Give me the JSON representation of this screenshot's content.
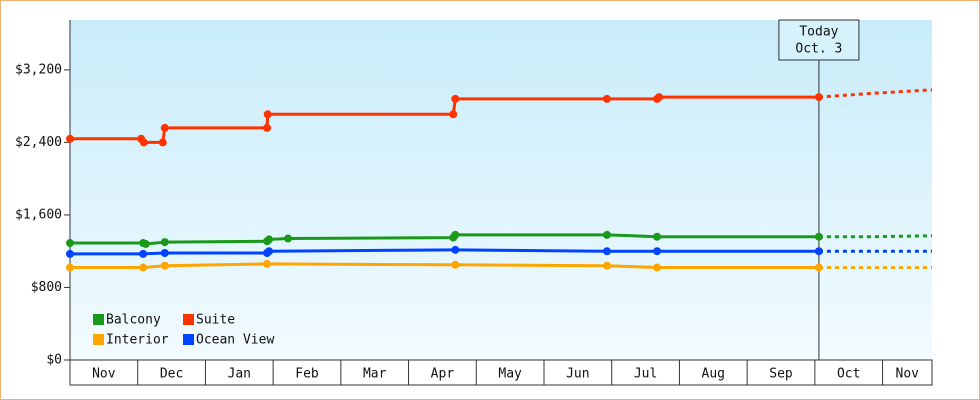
{
  "chart_data": {
    "type": "line",
    "step": true,
    "xlim": [
      0,
      12.73
    ],
    "ylim": [
      0,
      3750
    ],
    "yticks": [
      {
        "value": 0,
        "label": "$0"
      },
      {
        "value": 800,
        "label": "$800"
      },
      {
        "value": 1600,
        "label": "$1,600"
      },
      {
        "value": 2400,
        "label": "$2,400"
      },
      {
        "value": 3200,
        "label": "$3,200"
      }
    ],
    "xticks": [
      {
        "value": 0.5,
        "label": "Nov"
      },
      {
        "value": 1.5,
        "label": "Dec"
      },
      {
        "value": 2.5,
        "label": "Jan"
      },
      {
        "value": 3.5,
        "label": "Feb"
      },
      {
        "value": 4.5,
        "label": "Mar"
      },
      {
        "value": 5.5,
        "label": "Apr"
      },
      {
        "value": 6.5,
        "label": "May"
      },
      {
        "value": 7.5,
        "label": "Jun"
      },
      {
        "value": 8.5,
        "label": "Jul"
      },
      {
        "value": 9.5,
        "label": "Aug"
      },
      {
        "value": 10.5,
        "label": "Sep"
      },
      {
        "value": 11.5,
        "label": "Oct"
      },
      {
        "value": 12.5,
        "label": "Nov"
      }
    ],
    "today": {
      "x": 11.06,
      "label": [
        "Today",
        "Oct. 3"
      ]
    },
    "forecast_x": [
      11.06,
      11.82,
      12.73
    ],
    "series": [
      {
        "name": "Balcony",
        "color": "#1a9a1a",
        "x": [
          0,
          1.08,
          1.12,
          1.4,
          2.91,
          2.94,
          3.22,
          5.66,
          5.69,
          7.93,
          8.67,
          11.06
        ],
        "values": [
          1290,
          1290,
          1280,
          1300,
          1310,
          1330,
          1340,
          1350,
          1380,
          1380,
          1360,
          1360
        ],
        "forecast_values": [
          1360,
          1360,
          1370
        ]
      },
      {
        "name": "Suite",
        "color": "#ff3300",
        "x": [
          0,
          1.05,
          1.09,
          1.37,
          1.4,
          2.91,
          2.92,
          5.66,
          5.69,
          7.93,
          8.67,
          8.7,
          11.06
        ],
        "values": [
          2440,
          2440,
          2400,
          2400,
          2560,
          2560,
          2710,
          2710,
          2880,
          2880,
          2880,
          2900,
          2900
        ],
        "forecast_values": [
          2900,
          2940,
          2980
        ]
      },
      {
        "name": "Interior",
        "color": "#ffa500",
        "x": [
          0,
          1.08,
          1.4,
          2.91,
          5.69,
          7.93,
          8.67,
          11.06
        ],
        "values": [
          1020,
          1020,
          1040,
          1060,
          1050,
          1040,
          1020,
          1020
        ],
        "forecast_values": [
          1020,
          1020,
          1020
        ]
      },
      {
        "name": "Ocean View",
        "color": "#0044ff",
        "x": [
          0,
          1.08,
          1.4,
          2.91,
          2.94,
          5.69,
          7.93,
          8.67,
          11.06
        ],
        "values": [
          1170,
          1170,
          1180,
          1180,
          1200,
          1215,
          1200,
          1200,
          1200
        ],
        "forecast_values": [
          1200,
          1200,
          1200
        ]
      }
    ]
  }
}
